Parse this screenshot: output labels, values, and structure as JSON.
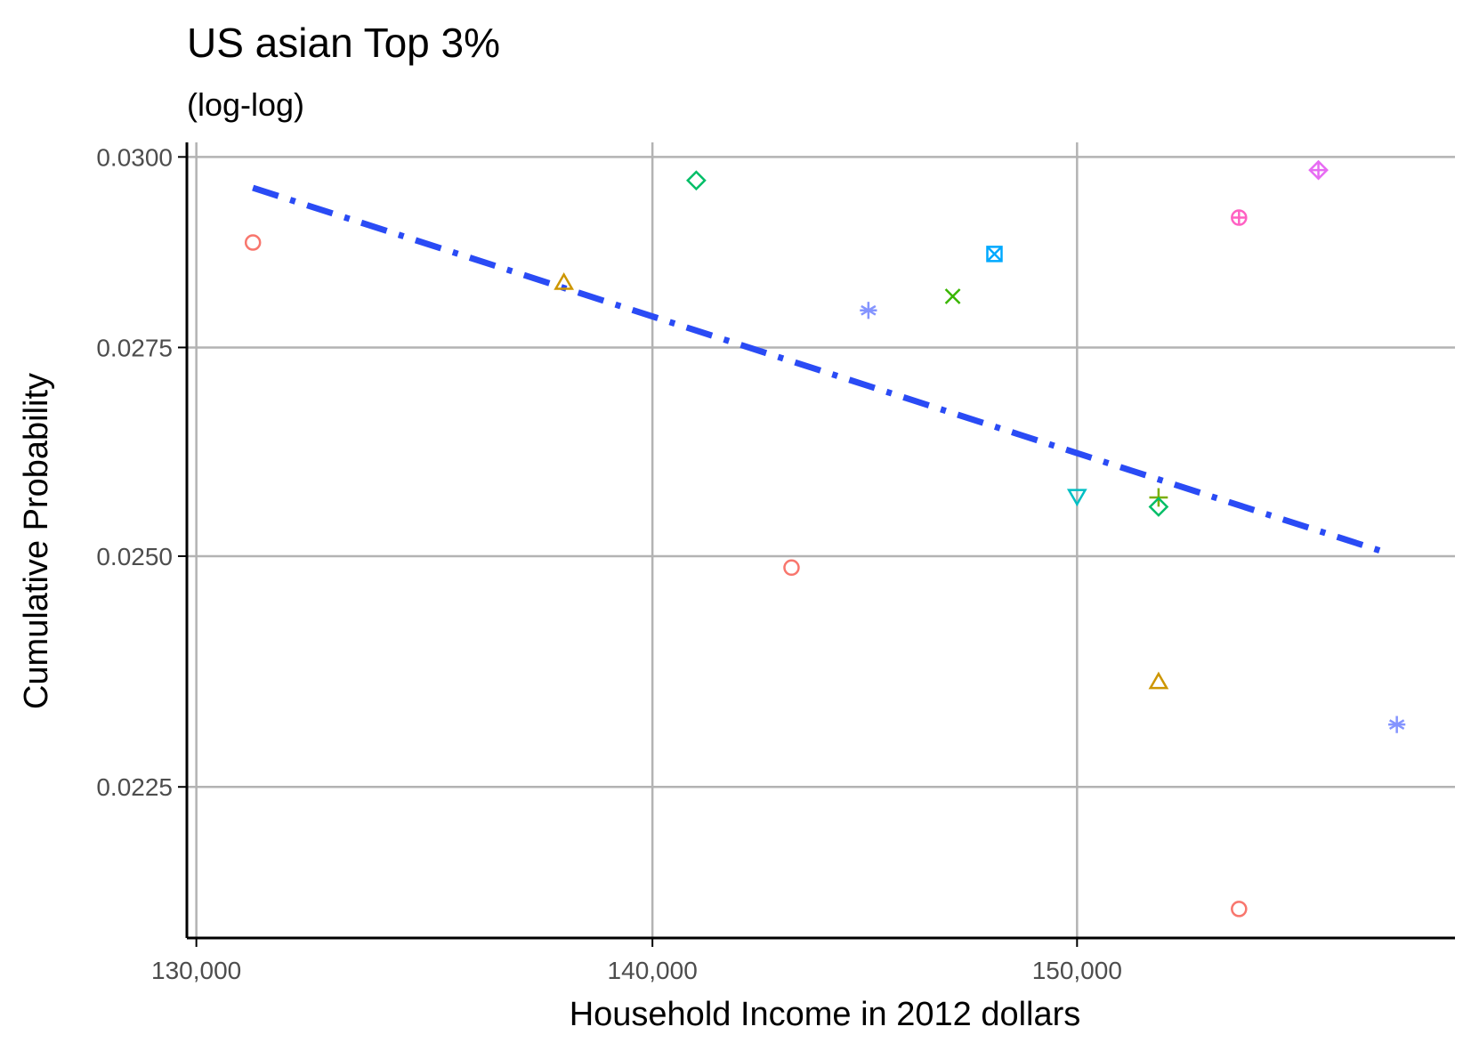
{
  "chart_data": {
    "type": "scatter",
    "title": "US asian Top 3%",
    "subtitle": "(log-log)",
    "xlabel": "Household Income in 2012 dollars",
    "ylabel": "Cumulative Probability",
    "x_scale": "log",
    "y_scale": "log",
    "xlim": [
      129800,
      159500
    ],
    "ylim": [
      0.021,
      0.0302
    ],
    "x_ticks": [
      130000,
      140000,
      150000
    ],
    "x_tick_labels": [
      "130,000",
      "140,000",
      "150,000"
    ],
    "y_ticks": [
      0.0225,
      0.025,
      0.0275,
      0.03
    ],
    "y_tick_labels": [
      "0.0225",
      "0.0250",
      "0.0275",
      "0.0300"
    ],
    "grid": true,
    "legend": "none",
    "points": [
      {
        "x": 131200,
        "y": 0.02885,
        "shape": "circle",
        "color": "#F8766D"
      },
      {
        "x": 138000,
        "y": 0.02832,
        "shape": "triangle",
        "color": "#CD9600"
      },
      {
        "x": 141000,
        "y": 0.02968,
        "shape": "diamond",
        "color": "#00BE67"
      },
      {
        "x": 143200,
        "y": 0.02487,
        "shape": "circle",
        "color": "#F8766D"
      },
      {
        "x": 145000,
        "y": 0.02797,
        "shape": "asterisk",
        "color": "#8494FF"
      },
      {
        "x": 147000,
        "y": 0.02815,
        "shape": "cross",
        "color": "#39B600"
      },
      {
        "x": 148000,
        "y": 0.0287,
        "shape": "square-cross",
        "color": "#00A9FF"
      },
      {
        "x": 150000,
        "y": 0.0257,
        "shape": "triangle-down",
        "color": "#00BFC4"
      },
      {
        "x": 152000,
        "y": 0.02568,
        "shape": "plus",
        "color": "#7CAE00"
      },
      {
        "x": 152000,
        "y": 0.02557,
        "shape": "diamond",
        "color": "#00BE67"
      },
      {
        "x": 152000,
        "y": 0.0236,
        "shape": "triangle",
        "color": "#CD9600"
      },
      {
        "x": 154000,
        "y": 0.02918,
        "shape": "circle-plus",
        "color": "#FF61C3"
      },
      {
        "x": 154000,
        "y": 0.02128,
        "shape": "circle",
        "color": "#F8766D"
      },
      {
        "x": 156000,
        "y": 0.02982,
        "shape": "diamond-plus",
        "color": "#E76BF3"
      },
      {
        "x": 158000,
        "y": 0.02315,
        "shape": "asterisk",
        "color": "#8494FF"
      }
    ],
    "fit_line": {
      "x": [
        131200,
        157800
      ],
      "y": [
        0.02958,
        0.02503
      ],
      "color": "#2A4BF5",
      "style": "dash-dot"
    },
    "colors": {
      "grid": "#b3b3b3",
      "axis": "#000000",
      "tick_label": "#4d4d4d",
      "background": "#ffffff"
    }
  }
}
